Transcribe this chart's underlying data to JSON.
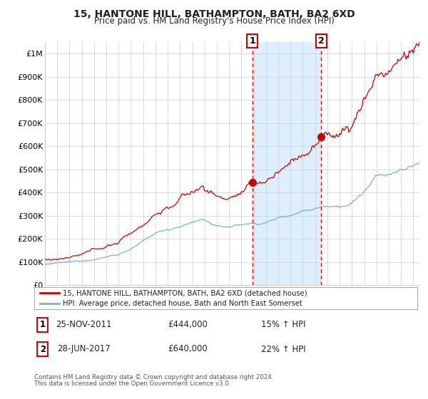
{
  "title": "15, HANTONE HILL, BATHAMPTON, BATH, BA2 6XD",
  "subtitle": "Price paid vs. HM Land Registry's House Price Index (HPI)",
  "xlim_start": 1995.0,
  "xlim_end": 2025.5,
  "ylim": [
    0,
    1050000
  ],
  "yticks": [
    0,
    100000,
    200000,
    300000,
    400000,
    500000,
    600000,
    700000,
    800000,
    900000,
    1000000
  ],
  "ytick_labels": [
    "£0",
    "£100K",
    "£200K",
    "£300K",
    "£400K",
    "£500K",
    "£600K",
    "£700K",
    "£800K",
    "£900K",
    "£1M"
  ],
  "red_line_color": "#cc0000",
  "blue_line_color": "#7ab0d4",
  "highlight_color": "#ddeeff",
  "vline_color": "#cc0000",
  "purchase1_x": 2011.9,
  "purchase1_y": 444000,
  "purchase1_label": "25-NOV-2011",
  "purchase1_price": "£444,000",
  "purchase1_hpi": "15% ↑ HPI",
  "purchase2_x": 2017.5,
  "purchase2_y": 640000,
  "purchase2_label": "28-JUN-2017",
  "purchase2_price": "£640,000",
  "purchase2_hpi": "22% ↑ HPI",
  "legend_line1": "15, HANTONE HILL, BATHAMPTON, BATH, BA2 6XD (detached house)",
  "legend_line2": "HPI: Average price, detached house, Bath and North East Somerset",
  "footnote1": "Contains HM Land Registry data © Crown copyright and database right 2024.",
  "footnote2": "This data is licensed under the Open Government Licence v3.0.",
  "grid_color": "#cccccc",
  "bg_color": "#ffffff"
}
